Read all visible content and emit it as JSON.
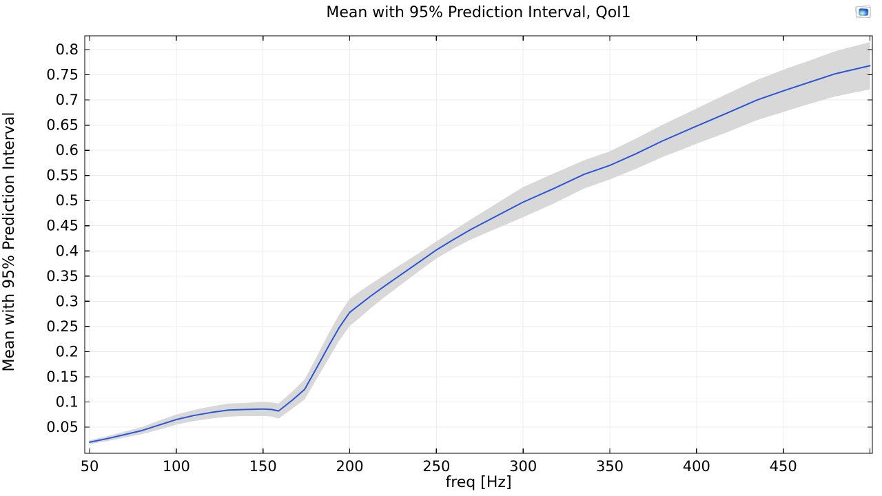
{
  "corner_icon": "plot-group-icon",
  "colors": {
    "background": "#ffffff",
    "grid": "#ececec",
    "band": "#d8d8d8",
    "line": "#2b55d6",
    "axis": "#000000",
    "text": "#000000"
  },
  "chart_data": {
    "type": "line",
    "title": "Mean with 95% Prediction Interval, QoI1",
    "xlabel": "freq [Hz]",
    "ylabel": "Mean with 95% Prediction Interval",
    "grid": true,
    "legend": "none",
    "x_range": [
      47.2,
      501.4
    ],
    "y_range": [
      -0.002,
      0.8274
    ],
    "x_ticks": [
      {
        "v": 50,
        "label": "50"
      },
      {
        "v": 100,
        "label": "100"
      },
      {
        "v": 150,
        "label": "150"
      },
      {
        "v": 200,
        "label": "200"
      },
      {
        "v": 250,
        "label": "250"
      },
      {
        "v": 300,
        "label": "300"
      },
      {
        "v": 350,
        "label": "350"
      },
      {
        "v": 400,
        "label": "400"
      },
      {
        "v": 450,
        "label": "450"
      },
      {
        "v": 500,
        "label": ""
      }
    ],
    "y_ticks": [
      {
        "v": 0.05,
        "label": "0.05"
      },
      {
        "v": 0.1,
        "label": "0.1"
      },
      {
        "v": 0.15,
        "label": "0.15"
      },
      {
        "v": 0.2,
        "label": "0.2"
      },
      {
        "v": 0.25,
        "label": "0.25"
      },
      {
        "v": 0.3,
        "label": "0.3"
      },
      {
        "v": 0.35,
        "label": "0.35"
      },
      {
        "v": 0.4,
        "label": "0.4"
      },
      {
        "v": 0.45,
        "label": "0.45"
      },
      {
        "v": 0.5,
        "label": "0.5"
      },
      {
        "v": 0.55,
        "label": "0.55"
      },
      {
        "v": 0.6,
        "label": "0.6"
      },
      {
        "v": 0.65,
        "label": "0.65"
      },
      {
        "v": 0.7,
        "label": "0.7"
      },
      {
        "v": 0.75,
        "label": "0.75"
      },
      {
        "v": 0.8,
        "label": "0.8"
      }
    ],
    "series": [
      {
        "name": "95% prediction interval",
        "type": "band",
        "color": "#d8d8d8"
      },
      {
        "name": "mean",
        "type": "line",
        "color": "#2b55d6"
      }
    ],
    "points_format": [
      "freq",
      "lower",
      "mean",
      "upper"
    ],
    "points": [
      [
        50,
        0.016,
        0.02,
        0.024
      ],
      [
        60,
        0.022,
        0.027,
        0.032
      ],
      [
        70,
        0.029,
        0.035,
        0.041
      ],
      [
        80,
        0.036,
        0.043,
        0.05
      ],
      [
        90,
        0.045,
        0.054,
        0.063
      ],
      [
        100,
        0.055,
        0.065,
        0.075
      ],
      [
        110,
        0.062,
        0.073,
        0.084
      ],
      [
        120,
        0.067,
        0.079,
        0.091
      ],
      [
        130,
        0.071,
        0.084,
        0.097
      ],
      [
        140,
        0.072,
        0.085,
        0.098
      ],
      [
        150,
        0.072,
        0.086,
        0.1
      ],
      [
        155,
        0.071,
        0.085,
        0.099
      ],
      [
        159,
        0.067,
        0.082,
        0.097
      ],
      [
        167,
        0.087,
        0.104,
        0.121
      ],
      [
        174,
        0.105,
        0.125,
        0.145
      ],
      [
        181,
        0.146,
        0.168,
        0.19
      ],
      [
        188,
        0.187,
        0.212,
        0.237
      ],
      [
        194,
        0.222,
        0.248,
        0.274
      ],
      [
        200,
        0.251,
        0.278,
        0.305
      ],
      [
        206,
        0.268,
        0.294,
        0.32
      ],
      [
        212,
        0.286,
        0.31,
        0.334
      ],
      [
        220,
        0.308,
        0.33,
        0.352
      ],
      [
        230,
        0.334,
        0.354,
        0.374
      ],
      [
        240,
        0.36,
        0.378,
        0.396
      ],
      [
        250,
        0.385,
        0.402,
        0.419
      ],
      [
        260,
        0.405,
        0.423,
        0.441
      ],
      [
        270,
        0.423,
        0.443,
        0.463
      ],
      [
        285,
        0.445,
        0.47,
        0.495
      ],
      [
        300,
        0.467,
        0.497,
        0.527
      ],
      [
        317,
        0.493,
        0.523,
        0.553
      ],
      [
        335,
        0.524,
        0.552,
        0.58
      ],
      [
        350,
        0.542,
        0.57,
        0.598
      ],
      [
        365,
        0.563,
        0.593,
        0.623
      ],
      [
        380,
        0.586,
        0.618,
        0.65
      ],
      [
        400,
        0.613,
        0.648,
        0.683
      ],
      [
        417,
        0.635,
        0.673,
        0.711
      ],
      [
        435,
        0.66,
        0.7,
        0.74
      ],
      [
        450,
        0.676,
        0.718,
        0.76
      ],
      [
        465,
        0.692,
        0.735,
        0.778
      ],
      [
        480,
        0.707,
        0.752,
        0.797
      ],
      [
        500,
        0.721,
        0.768,
        0.815
      ]
    ]
  }
}
